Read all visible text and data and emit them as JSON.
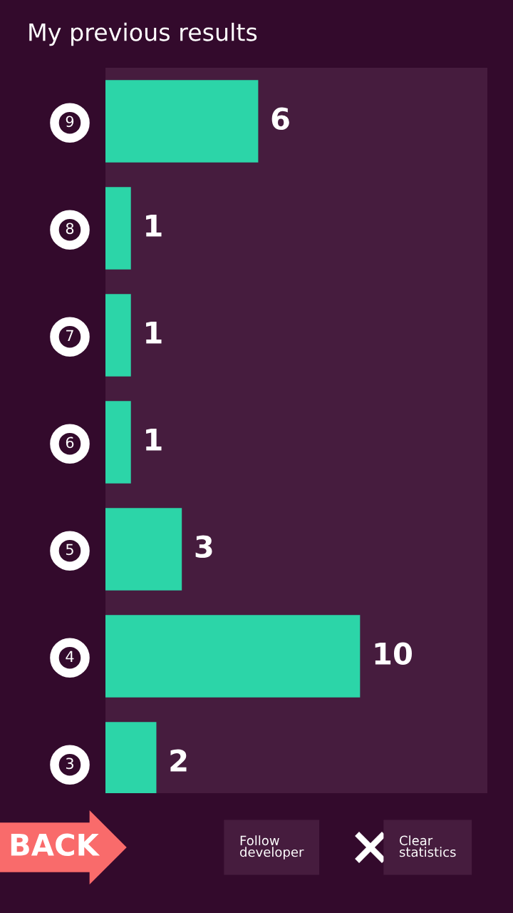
{
  "chart_data": {
    "type": "bar",
    "orientation": "horizontal",
    "title": "My previous results",
    "categories": [
      "9",
      "8",
      "7",
      "6",
      "5",
      "4",
      "3"
    ],
    "values": [
      6,
      1,
      1,
      1,
      3,
      10,
      2
    ],
    "color": "#2cd5a8",
    "data_labels": true,
    "xlim": [
      0,
      15
    ],
    "tick_labels": "y",
    "grid": false,
    "legend": false,
    "annotations": [
      "BACK",
      "Follow\ndeveloper",
      "Clear\nstatistics"
    ]
  }
}
